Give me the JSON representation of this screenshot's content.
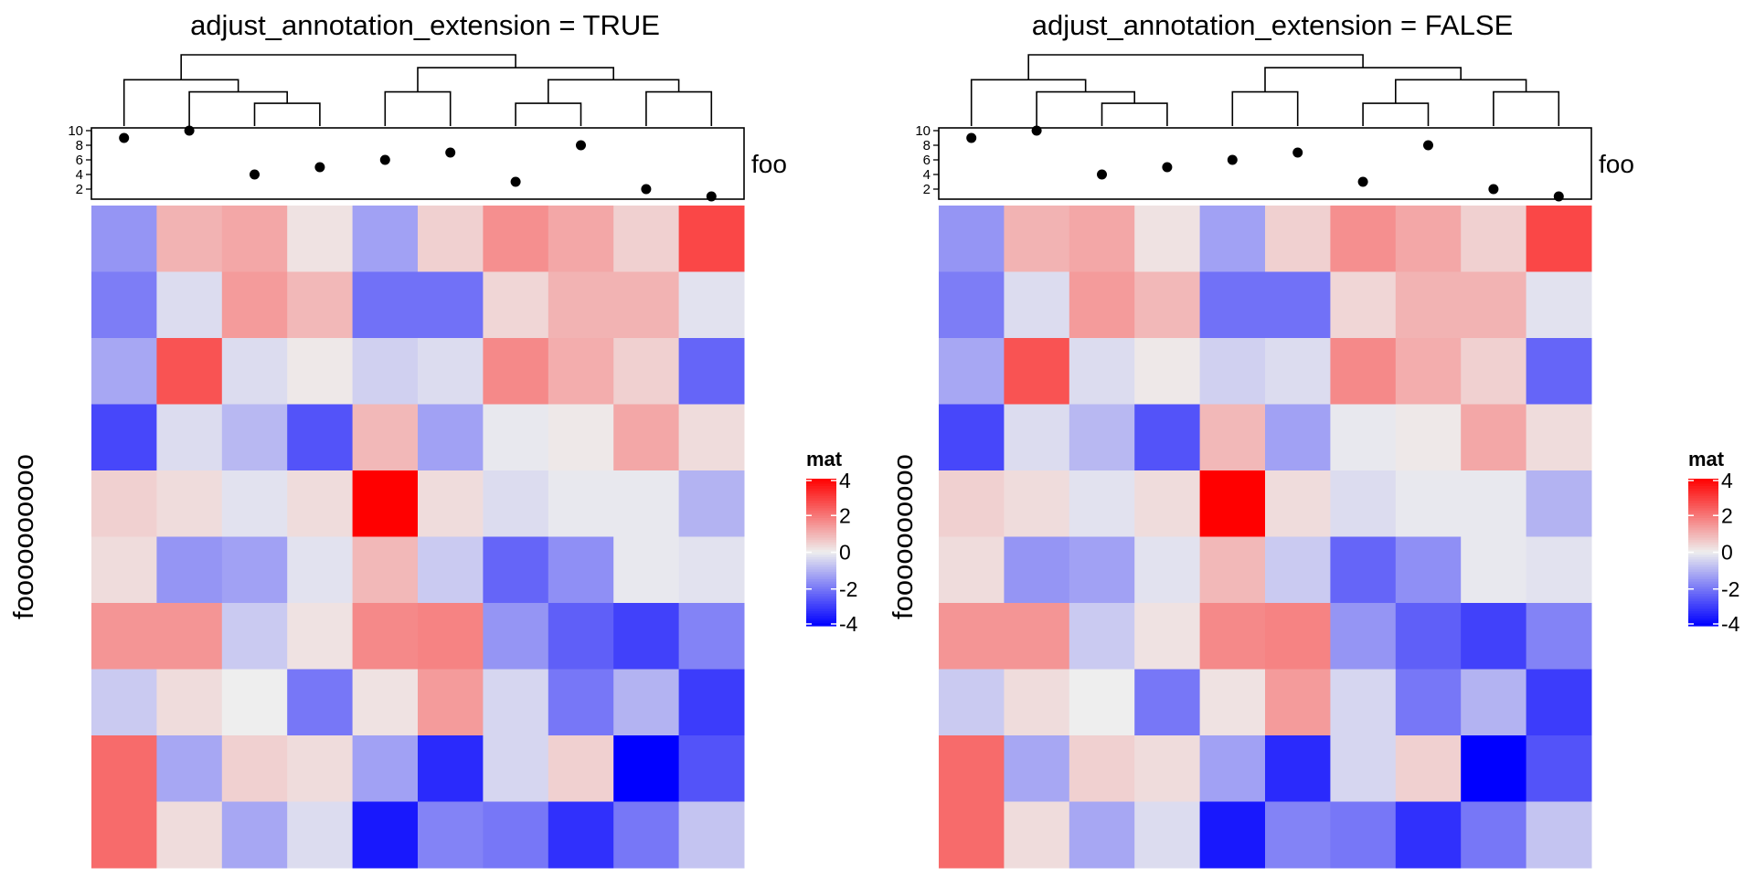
{
  "chart_data": [
    {
      "type": "heatmap",
      "title": "adjust_annotation_extension = TRUE",
      "row_title": "foooooooooo",
      "annotation": {
        "name": "foo",
        "type": "points",
        "ticks": [
          2,
          4,
          6,
          8,
          10
        ],
        "ylim": [
          1,
          10
        ],
        "values": [
          9,
          10,
          4,
          5,
          6,
          7,
          3,
          8,
          2,
          1
        ]
      },
      "legend": {
        "title": "mat",
        "ticks": [
          "4",
          "2",
          "0",
          "-2",
          "-4"
        ],
        "range": [
          -4,
          4
        ]
      },
      "colors": {
        "low": "#0000FF",
        "mid": "#EEEEEE",
        "high": "#FF0000"
      },
      "matrix": [
        [
          -1.5,
          1.0,
          1.2,
          0.2,
          -1.3,
          0.5,
          1.6,
          1.2,
          0.5,
          2.8
        ],
        [
          -1.9,
          -0.3,
          1.4,
          0.9,
          -2.1,
          -2.1,
          0.4,
          1.0,
          1.0,
          -0.2
        ],
        [
          -1.2,
          2.6,
          -0.3,
          0.1,
          -0.5,
          -0.3,
          1.7,
          1.1,
          0.5,
          -2.3
        ],
        [
          -2.8,
          -0.3,
          -0.9,
          -2.6,
          0.9,
          -1.3,
          -0.1,
          0.1,
          1.2,
          0.3
        ],
        [
          0.5,
          0.3,
          -0.2,
          0.3,
          4.0,
          0.3,
          -0.3,
          -0.1,
          -0.1,
          -1.0
        ],
        [
          0.3,
          -1.5,
          -1.3,
          -0.2,
          0.9,
          -0.6,
          -2.3,
          -1.6,
          -0.1,
          -0.2
        ],
        [
          1.5,
          1.5,
          -0.6,
          0.2,
          1.7,
          1.8,
          -1.5,
          -2.4,
          -2.9,
          -1.8
        ],
        [
          -0.6,
          0.3,
          0.0,
          -2.0,
          0.2,
          1.4,
          -0.4,
          -2.0,
          -1.0,
          -3.0
        ],
        [
          2.2,
          -1.2,
          0.5,
          0.3,
          -1.3,
          -3.3,
          -0.4,
          0.5,
          -4.0,
          -2.6
        ],
        [
          2.2,
          0.3,
          -1.2,
          -0.3,
          -3.6,
          -1.8,
          -2.0,
          -3.2,
          -2.0,
          -0.7
        ]
      ]
    },
    {
      "type": "heatmap",
      "title": "adjust_annotation_extension = FALSE",
      "row_title": "foooooooooo",
      "annotation": {
        "name": "foo",
        "type": "points",
        "ticks": [
          2,
          4,
          6,
          8,
          10
        ],
        "ylim": [
          1,
          10
        ],
        "values": [
          9,
          10,
          4,
          5,
          6,
          7,
          3,
          8,
          2,
          1
        ]
      },
      "legend": {
        "title": "mat",
        "ticks": [
          "4",
          "2",
          "0",
          "-2",
          "-4"
        ],
        "range": [
          -4,
          4
        ]
      },
      "colors": {
        "low": "#0000FF",
        "mid": "#EEEEEE",
        "high": "#FF0000"
      },
      "matrix": [
        [
          -1.5,
          1.0,
          1.2,
          0.2,
          -1.3,
          0.5,
          1.6,
          1.2,
          0.5,
          2.8
        ],
        [
          -1.9,
          -0.3,
          1.4,
          0.9,
          -2.1,
          -2.1,
          0.4,
          1.0,
          1.0,
          -0.2
        ],
        [
          -1.2,
          2.6,
          -0.3,
          0.1,
          -0.5,
          -0.3,
          1.7,
          1.1,
          0.5,
          -2.3
        ],
        [
          -2.8,
          -0.3,
          -0.9,
          -2.6,
          0.9,
          -1.3,
          -0.1,
          0.1,
          1.2,
          0.3
        ],
        [
          0.5,
          0.3,
          -0.2,
          0.3,
          4.0,
          0.3,
          -0.3,
          -0.1,
          -0.1,
          -1.0
        ],
        [
          0.3,
          -1.5,
          -1.3,
          -0.2,
          0.9,
          -0.6,
          -2.3,
          -1.6,
          -0.1,
          -0.2
        ],
        [
          1.5,
          1.5,
          -0.6,
          0.2,
          1.7,
          1.8,
          -1.5,
          -2.4,
          -2.9,
          -1.8
        ],
        [
          -0.6,
          0.3,
          0.0,
          -2.0,
          0.2,
          1.4,
          -0.4,
          -2.0,
          -1.0,
          -3.0
        ],
        [
          2.2,
          -1.2,
          0.5,
          0.3,
          -1.3,
          -3.3,
          -0.4,
          0.5,
          -4.0,
          -2.6
        ],
        [
          2.2,
          0.3,
          -1.2,
          -0.3,
          -3.6,
          -1.8,
          -2.0,
          -3.2,
          -2.0,
          -0.7
        ]
      ]
    }
  ]
}
